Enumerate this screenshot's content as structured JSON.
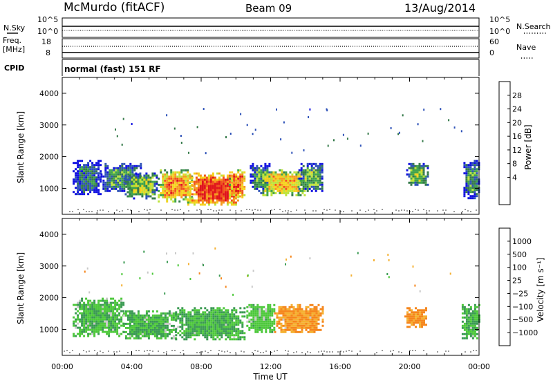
{
  "header": {
    "station": "McMurdo (fitACF)",
    "beam": "Beam 09",
    "date": "13/Aug/2014"
  },
  "top_panel": {
    "nsky_label": "N.Sky",
    "nsky_ticks": [
      "10^5",
      "10^0"
    ],
    "nsearch_label": "N.Search",
    "nsearch_ticks": [
      "10^5",
      "10^0"
    ],
    "freq_label_1": "Freq.",
    "freq_label_2": "[MHz]",
    "freq_ticks": [
      "18",
      "8"
    ],
    "nave_label": "Nave",
    "nave_ticks": [
      "60",
      "0"
    ],
    "cpid_label": "CPID",
    "cpid_value": "normal (fast) 151 RF"
  },
  "colors": {
    "power": [
      "#1010e0",
      "#2e52b8",
      "#357a4a",
      "#3fa34a",
      "#bde33a",
      "#f5d21c",
      "#f59a1e",
      "#f0551c",
      "#e0151a"
    ],
    "velocity": [
      "#ee1010",
      "#f05018",
      "#f5861c",
      "#f5b030",
      "#c8c8c8",
      "#4cc83a",
      "#3a9a52",
      "#2c6a8e",
      "#1a3ac0"
    ],
    "ground": "#9a9a9a"
  },
  "chart_data": [
    {
      "type": "heatmap",
      "panel": "power",
      "xlabel": "",
      "ylabel": "Slant Range [km]",
      "xlim_hours": [
        0,
        24
      ],
      "ylim": [
        180,
        4500
      ],
      "yticks": [
        "4000",
        "3000",
        "2000",
        "1000"
      ],
      "colorbar": {
        "label": "Power [dB]",
        "ticks": [
          "28",
          "24",
          "20",
          "16",
          "12",
          "8",
          "4"
        ],
        "range": [
          0,
          30
        ]
      },
      "regions": [
        {
          "t": [
            0.6,
            2.2
          ],
          "range": [
            800,
            1900
          ],
          "value": 8
        },
        {
          "t": [
            2.2,
            4.5
          ],
          "range": [
            900,
            1800
          ],
          "value": 10
        },
        {
          "t": [
            3.6,
            5.5
          ],
          "range": [
            700,
            1500
          ],
          "value": 14
        },
        {
          "t": [
            5.5,
            7.5
          ],
          "range": [
            600,
            1600
          ],
          "value": 22
        },
        {
          "t": [
            7.2,
            10.2
          ],
          "range": [
            500,
            1500
          ],
          "value": 27
        },
        {
          "t": [
            9.6,
            10.5
          ],
          "range": [
            700,
            1600
          ],
          "value": 24
        },
        {
          "t": [
            10.8,
            12.0
          ],
          "range": [
            900,
            1800
          ],
          "value": 10
        },
        {
          "t": [
            11.4,
            14.0
          ],
          "range": [
            800,
            1600
          ],
          "value": 20
        },
        {
          "t": [
            13.6,
            15.0
          ],
          "range": [
            900,
            1800
          ],
          "value": 12
        },
        {
          "t": [
            19.8,
            21.0
          ],
          "range": [
            1100,
            1800
          ],
          "value": 14
        },
        {
          "t": [
            23.1,
            24.0
          ],
          "range": [
            700,
            1900
          ],
          "value": 10
        }
      ]
    },
    {
      "type": "heatmap",
      "panel": "velocity",
      "xlabel": "Time UT",
      "ylabel": "Slant Range [km]",
      "xlim_hours": [
        0,
        24
      ],
      "xticks": [
        "00:00",
        "04:00",
        "08:00",
        "12:00",
        "16:00",
        "20:00",
        "00:00"
      ],
      "ylim": [
        180,
        4500
      ],
      "yticks": [
        "4000",
        "3000",
        "2000",
        "1000"
      ],
      "colorbar": {
        "label": "Velocity [m s⁻¹]",
        "ticks": [
          "1000",
          "500",
          "100",
          "25",
          "−25",
          "−100",
          "−500",
          "−1000"
        ]
      },
      "regions": [
        {
          "t": [
            0.6,
            3.5
          ],
          "range": [
            800,
            2000
          ],
          "value": 80
        },
        {
          "t": [
            3.5,
            6.5
          ],
          "range": [
            700,
            1600
          ],
          "value": 100
        },
        {
          "t": [
            6.5,
            10.5
          ],
          "range": [
            700,
            1700
          ],
          "value": 110
        },
        {
          "t": [
            10.6,
            12.2
          ],
          "range": [
            900,
            1800
          ],
          "value": 60
        },
        {
          "t": [
            12.2,
            15.0
          ],
          "range": [
            900,
            1800
          ],
          "value": -120
        },
        {
          "t": [
            19.7,
            21.0
          ],
          "range": [
            1100,
            1700
          ],
          "value": -160
        },
        {
          "t": [
            23.0,
            24.0
          ],
          "range": [
            700,
            1800
          ],
          "value": 100
        }
      ]
    }
  ]
}
